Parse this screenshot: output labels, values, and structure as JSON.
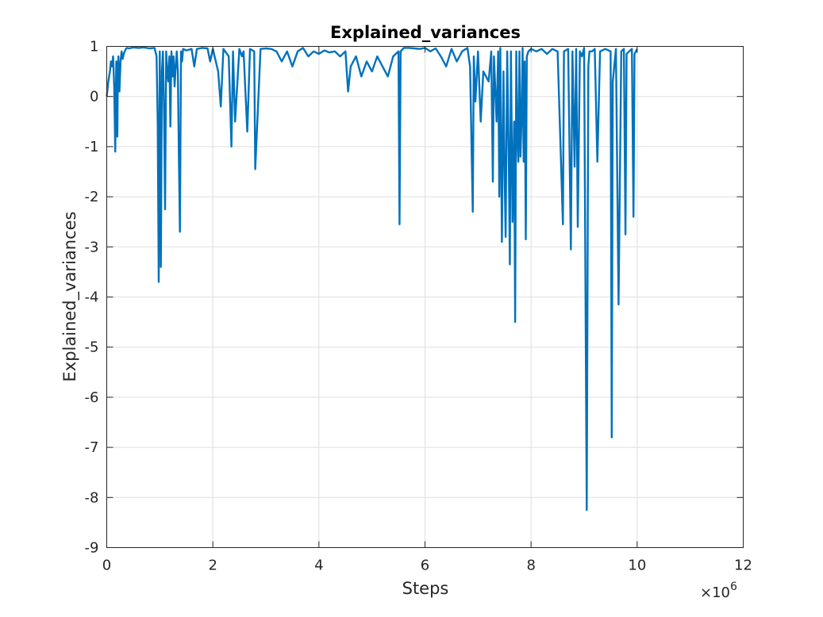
{
  "chart_data": {
    "type": "line",
    "title": "Explained_variances",
    "xlabel": "Steps",
    "ylabel": "Explained_variances",
    "x_exponent_label": "×10",
    "x_exponent_power": "6",
    "xlim": [
      0,
      12
    ],
    "ylim": [
      -9,
      1
    ],
    "x_ticks": [
      0,
      2,
      4,
      6,
      8,
      10,
      12
    ],
    "x_tick_labels": [
      "0",
      "2",
      "4",
      "6",
      "8",
      "10",
      "12"
    ],
    "y_ticks": [
      1,
      0,
      -1,
      -2,
      -3,
      -4,
      -5,
      -6,
      -7,
      -8,
      -9
    ],
    "y_tick_labels": [
      "1",
      "0",
      "-1",
      "-2",
      "-3",
      "-4",
      "-5",
      "-6",
      "-7",
      "-8",
      "-9"
    ],
    "grid": true,
    "series_color": "#0072bd",
    "series": [
      {
        "x": [
          0.0,
          0.03,
          0.06,
          0.08,
          0.1,
          0.12,
          0.14,
          0.16,
          0.18,
          0.2,
          0.21,
          0.22,
          0.24,
          0.26,
          0.28,
          0.3,
          0.32,
          0.34,
          0.36,
          0.38,
          0.42,
          0.5,
          0.6,
          0.7,
          0.8,
          0.9,
          0.94,
          0.96,
          0.98,
          1.0,
          1.02,
          1.04,
          1.06,
          1.08,
          1.1,
          1.12,
          1.14,
          1.16,
          1.18,
          1.2,
          1.22,
          1.24,
          1.26,
          1.28,
          1.3,
          1.32,
          1.34,
          1.36,
          1.38,
          1.4,
          1.42,
          1.44,
          1.5,
          1.6,
          1.65,
          1.7,
          1.8,
          1.9,
          1.95,
          2.0,
          2.1,
          2.15,
          2.2,
          2.3,
          2.35,
          2.38,
          2.42,
          2.5,
          2.55,
          2.58,
          2.65,
          2.7,
          2.78,
          2.8,
          2.9,
          3.0,
          3.1,
          3.2,
          3.3,
          3.4,
          3.5,
          3.6,
          3.7,
          3.8,
          3.9,
          4.0,
          4.1,
          4.2,
          4.3,
          4.4,
          4.5,
          4.55,
          4.6,
          4.7,
          4.8,
          4.9,
          5.0,
          5.1,
          5.2,
          5.3,
          5.4,
          5.5,
          5.52,
          5.54,
          5.6,
          5.7,
          5.8,
          5.9,
          6.0,
          6.1,
          6.2,
          6.3,
          6.4,
          6.5,
          6.6,
          6.7,
          6.8,
          6.85,
          6.9,
          6.92,
          6.95,
          7.0,
          7.05,
          7.1,
          7.2,
          7.25,
          7.28,
          7.3,
          7.35,
          7.38,
          7.4,
          7.42,
          7.45,
          7.48,
          7.5,
          7.52,
          7.55,
          7.58,
          7.6,
          7.62,
          7.65,
          7.68,
          7.7,
          7.72,
          7.74,
          7.76,
          7.78,
          7.8,
          7.82,
          7.84,
          7.86,
          7.88,
          7.9,
          7.92,
          7.95,
          8.0,
          8.1,
          8.2,
          8.3,
          8.4,
          8.5,
          8.6,
          8.62,
          8.7,
          8.75,
          8.78,
          8.82,
          8.85,
          8.88,
          8.92,
          8.96,
          9.0,
          9.05,
          9.08,
          9.1,
          9.15,
          9.2,
          9.25,
          9.3,
          9.4,
          9.5,
          9.52,
          9.54,
          9.6,
          9.65,
          9.7,
          9.75,
          9.78,
          9.8,
          9.85,
          9.9,
          9.93,
          9.95,
          10.0
        ],
        "y": [
          0.0,
          0.3,
          0.5,
          0.7,
          0.6,
          0.8,
          0.2,
          -1.1,
          0.7,
          -0.8,
          0.5,
          0.8,
          0.1,
          0.7,
          0.9,
          0.75,
          0.85,
          0.9,
          0.95,
          0.97,
          0.96,
          0.98,
          0.97,
          0.98,
          0.96,
          0.97,
          0.8,
          -0.5,
          -3.7,
          0.9,
          -3.4,
          0.5,
          0.9,
          -0.3,
          -2.25,
          0.9,
          0.5,
          0.3,
          0.8,
          -0.6,
          0.9,
          0.4,
          0.8,
          0.2,
          0.6,
          0.9,
          0.5,
          -1.2,
          -2.7,
          0.9,
          0.7,
          0.95,
          0.92,
          0.95,
          0.6,
          0.95,
          0.97,
          0.96,
          0.7,
          0.95,
          0.5,
          -0.2,
          0.95,
          0.8,
          -1.0,
          0.9,
          -0.5,
          0.95,
          0.8,
          0.9,
          -0.7,
          0.95,
          0.9,
          -1.45,
          0.95,
          0.96,
          0.95,
          0.9,
          0.7,
          0.9,
          0.6,
          0.9,
          0.97,
          0.8,
          0.9,
          0.85,
          0.92,
          0.88,
          0.9,
          0.8,
          0.9,
          0.1,
          0.6,
          0.8,
          0.4,
          0.7,
          0.5,
          0.8,
          0.6,
          0.4,
          0.8,
          0.9,
          -2.55,
          0.9,
          0.97,
          0.97,
          0.96,
          0.95,
          0.97,
          0.9,
          0.96,
          0.8,
          0.6,
          0.95,
          0.7,
          0.9,
          0.97,
          0.6,
          -2.3,
          0.8,
          -0.1,
          0.9,
          -0.5,
          0.5,
          0.3,
          0.9,
          -1.7,
          0.8,
          -0.5,
          0.9,
          -2.0,
          0.97,
          -2.9,
          0.5,
          -1.5,
          -2.8,
          0.9,
          -1.3,
          -3.35,
          0.9,
          -2.5,
          -0.5,
          -4.5,
          0.9,
          -0.8,
          -1.3,
          0.9,
          -1.2,
          -0.5,
          0.97,
          -1.3,
          0.7,
          -2.85,
          0.8,
          0.9,
          0.95,
          0.9,
          0.95,
          0.85,
          0.95,
          0.9,
          -2.55,
          0.9,
          0.95,
          -3.05,
          0.9,
          -1.4,
          0.95,
          -2.6,
          0.9,
          0.8,
          0.97,
          -8.25,
          0.6,
          0.9,
          0.9,
          0.95,
          -1.3,
          0.9,
          0.95,
          0.9,
          -6.8,
          0.3,
          0.95,
          -4.15,
          0.9,
          0.95,
          -2.75,
          0.85,
          0.9,
          0.95,
          -2.4,
          0.85,
          0.95
        ]
      }
    ]
  }
}
